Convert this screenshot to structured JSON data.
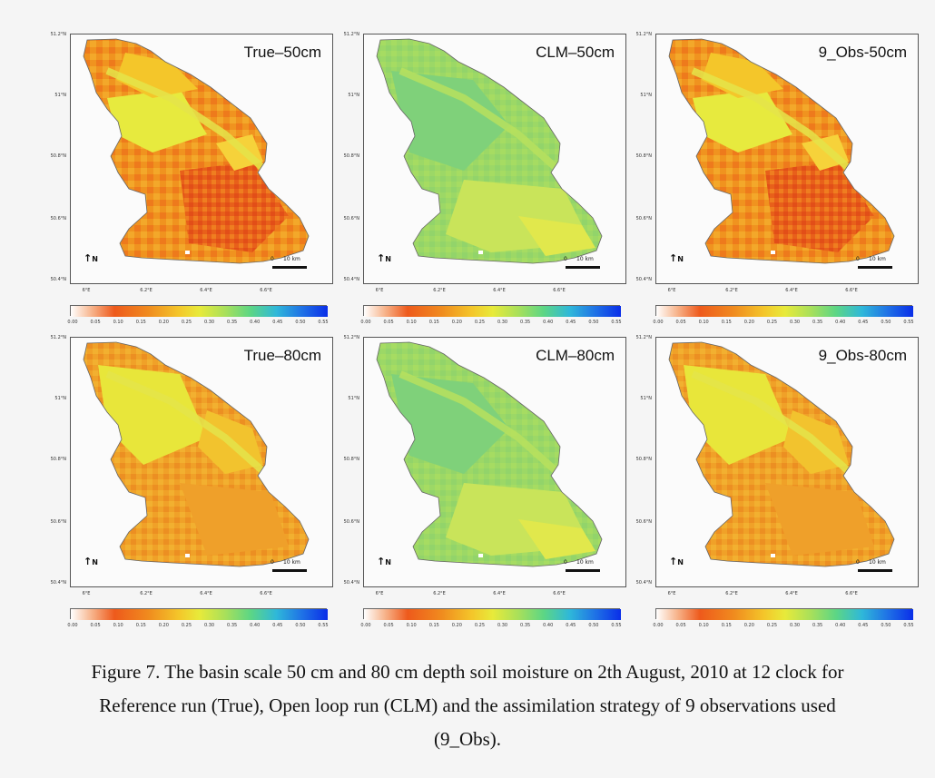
{
  "figure": {
    "panels": [
      {
        "title": "True–50cm",
        "palette": "dry"
      },
      {
        "title": "CLM–50cm",
        "palette": "wet"
      },
      {
        "title": "9_Obs-50cm",
        "palette": "dry"
      },
      {
        "title": "True–80cm",
        "palette": "mid"
      },
      {
        "title": "CLM–80cm",
        "palette": "wet"
      },
      {
        "title": "9_Obs-80cm",
        "palette": "mid"
      }
    ],
    "lat_ticks": [
      "51.2°N",
      "51°N",
      "50.8°N",
      "50.6°N",
      "50.4°N"
    ],
    "lon_ticks": [
      "6°E",
      "6.2°E",
      "6.4°E",
      "6.6°E"
    ],
    "colorbar_ticks": [
      "0.00",
      "0.05",
      "0.10",
      "0.15",
      "0.20",
      "0.25",
      "0.30",
      "0.35",
      "0.40",
      "0.45",
      "0.50",
      "0.55"
    ],
    "colorbar_range": [
      0.0,
      0.55
    ],
    "north_label": "N",
    "scale_zero": "0",
    "scale_label": "10 km",
    "colors": {
      "colormap": [
        "#ffffff",
        "#f7b58d",
        "#ee5a1c",
        "#f08a1e",
        "#f4c62a",
        "#e8ea3a",
        "#a9e05a",
        "#5cd685",
        "#2fb8d9",
        "#1f72e6",
        "#0a2ee8"
      ],
      "frame": "#555555",
      "background": "#f5f5f5"
    }
  },
  "caption": {
    "line1": "Figure 7. The basin scale 50 cm and 80 cm depth soil moisture on 2th August, 2010 at 12 clock  for",
    "line2": "Reference run (True), Open loop run (CLM) and the assimilation strategy of 9 observations used",
    "line3": "(9_Obs)."
  }
}
